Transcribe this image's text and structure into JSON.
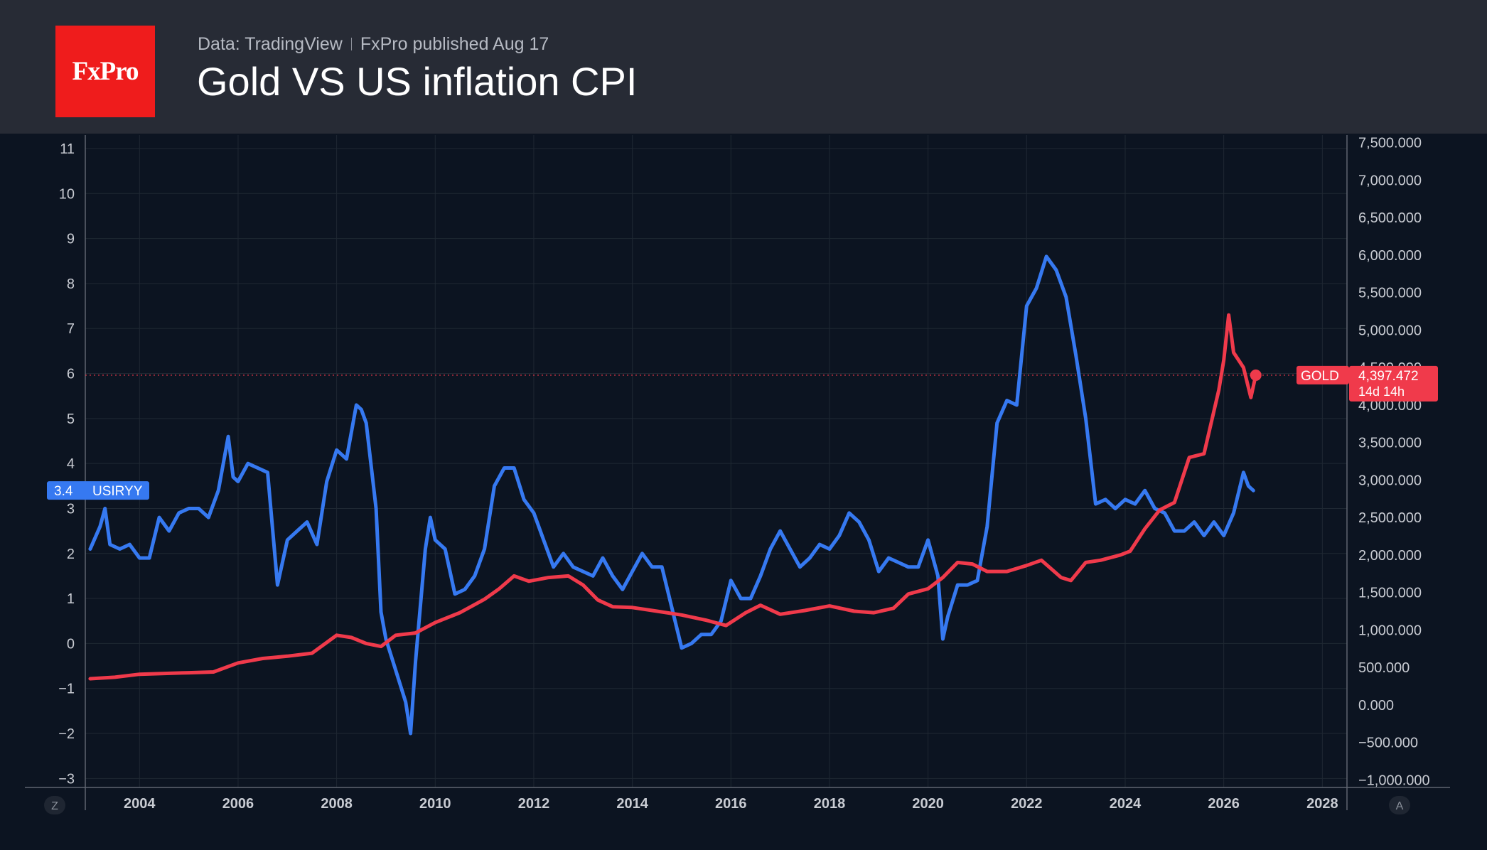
{
  "header": {
    "logo_text": "FxPro",
    "data_source": "Data: TradingView",
    "published": "FxPro published Aug 17",
    "title": "Gold  VS US inflation CPI"
  },
  "colors": {
    "background": "#0c1421",
    "header_background": "#272b35",
    "logo_red": "#ef1c1c",
    "cpi_blue": "#3679f1",
    "gold_red": "#f03a4b",
    "grid": "#1f2833",
    "axis_text": "#c9ccd3"
  },
  "chart_data": {
    "type": "line",
    "grid": true,
    "x_axis": {
      "ticks": [
        2004,
        2006,
        2008,
        2010,
        2012,
        2014,
        2016,
        2018,
        2020,
        2022,
        2024,
        2026,
        2028
      ],
      "range": [
        2002.9,
        2028.5
      ],
      "left_corner_label": "Z",
      "right_corner_label": "A"
    },
    "left_axis": {
      "ticks": [
        "11",
        "10",
        "9",
        "8",
        "7",
        "6",
        "5",
        "4",
        "3",
        "2",
        "1",
        "0",
        "−1",
        "−2",
        "−3"
      ],
      "range": [
        -3.2,
        11.3
      ]
    },
    "right_axis": {
      "ticks": [
        "7,500.000",
        "7,000.000",
        "6,500.000",
        "6,000.000",
        "5,500.000",
        "5,000.000",
        "4,500.000",
        "4,000.000",
        "3,500.000",
        "3,000.000",
        "2,500.000",
        "2,000.000",
        "1,500.000",
        "1,000.000",
        "500.000",
        "0.000",
        "−500.000",
        "−1,000.000"
      ],
      "range": [
        -1100,
        7600
      ]
    },
    "series": [
      {
        "name": "USIRYY",
        "axis": "left",
        "color": "#3679f1",
        "last_value_label": "3.4",
        "x": [
          2003.0,
          2003.2,
          2003.3,
          2003.4,
          2003.6,
          2003.8,
          2004.0,
          2004.2,
          2004.4,
          2004.6,
          2004.8,
          2005.0,
          2005.2,
          2005.4,
          2005.6,
          2005.8,
          2005.9,
          2006.0,
          2006.2,
          2006.4,
          2006.6,
          2006.8,
          2007.0,
          2007.2,
          2007.4,
          2007.6,
          2007.8,
          2008.0,
          2008.2,
          2008.4,
          2008.5,
          2008.6,
          2008.8,
          2008.9,
          2009.0,
          2009.2,
          2009.4,
          2009.5,
          2009.6,
          2009.8,
          2009.9,
          2010.0,
          2010.2,
          2010.4,
          2010.6,
          2010.8,
          2011.0,
          2011.2,
          2011.4,
          2011.6,
          2011.8,
          2012.0,
          2012.2,
          2012.4,
          2012.6,
          2012.8,
          2013.0,
          2013.2,
          2013.4,
          2013.6,
          2013.8,
          2014.0,
          2014.2,
          2014.4,
          2014.6,
          2014.8,
          2015.0,
          2015.2,
          2015.4,
          2015.6,
          2015.8,
          2016.0,
          2016.2,
          2016.4,
          2016.6,
          2016.8,
          2017.0,
          2017.2,
          2017.4,
          2017.6,
          2017.8,
          2018.0,
          2018.2,
          2018.4,
          2018.6,
          2018.8,
          2019.0,
          2019.2,
          2019.4,
          2019.6,
          2019.8,
          2020.0,
          2020.2,
          2020.3,
          2020.4,
          2020.6,
          2020.8,
          2021.0,
          2021.2,
          2021.4,
          2021.6,
          2021.8,
          2022.0,
          2022.2,
          2022.4,
          2022.6,
          2022.8,
          2023.0,
          2023.2,
          2023.4,
          2023.6,
          2023.8,
          2024.0,
          2024.2,
          2024.4,
          2024.6,
          2024.8,
          2025.0,
          2025.2,
          2025.4,
          2025.6,
          2025.8,
          2026.0,
          2026.2,
          2026.4,
          2026.5,
          2026.6
        ],
        "y": [
          2.1,
          2.6,
          3.0,
          2.2,
          2.1,
          2.2,
          1.9,
          1.9,
          2.8,
          2.5,
          2.9,
          3.0,
          3.0,
          2.8,
          3.4,
          4.6,
          3.7,
          3.6,
          4.0,
          3.9,
          3.8,
          1.3,
          2.3,
          2.5,
          2.7,
          2.2,
          3.6,
          4.3,
          4.1,
          5.3,
          5.2,
          4.9,
          3.0,
          0.7,
          0.1,
          -0.6,
          -1.3,
          -2.0,
          -0.4,
          2.1,
          2.8,
          2.3,
          2.1,
          1.1,
          1.2,
          1.5,
          2.1,
          3.5,
          3.9,
          3.9,
          3.2,
          2.9,
          2.3,
          1.7,
          2.0,
          1.7,
          1.6,
          1.5,
          1.9,
          1.5,
          1.2,
          1.6,
          2.0,
          1.7,
          1.7,
          0.8,
          -0.1,
          0.0,
          0.2,
          0.2,
          0.5,
          1.4,
          1.0,
          1.0,
          1.5,
          2.1,
          2.5,
          2.1,
          1.7,
          1.9,
          2.2,
          2.1,
          2.4,
          2.9,
          2.7,
          2.3,
          1.6,
          1.9,
          1.8,
          1.7,
          1.7,
          2.3,
          1.5,
          0.1,
          0.6,
          1.3,
          1.3,
          1.4,
          2.6,
          4.9,
          5.4,
          5.3,
          7.5,
          7.9,
          8.6,
          8.3,
          7.7,
          6.4,
          5.0,
          3.1,
          3.2,
          3.0,
          3.2,
          3.1,
          3.4,
          3.0,
          2.9,
          2.5,
          2.5,
          2.7,
          2.4,
          2.7,
          2.4,
          2.9,
          3.8,
          3.5,
          3.4
        ],
        "note": "sampled from chart; peak ~9.1 (2022.5), trough ~-2.0 (2009.5)"
      },
      {
        "name": "GOLD",
        "axis": "right",
        "color": "#f03a4b",
        "last_value_label": "4,397.472",
        "countdown_label": "14d 14h",
        "x": [
          2003.0,
          2003.5,
          2004.0,
          2004.5,
          2005.0,
          2005.5,
          2006.0,
          2006.5,
          2007.0,
          2007.5,
          2008.0,
          2008.3,
          2008.6,
          2008.9,
          2009.2,
          2009.6,
          2010.0,
          2010.5,
          2011.0,
          2011.3,
          2011.6,
          2011.9,
          2012.3,
          2012.7,
          2013.0,
          2013.3,
          2013.6,
          2014.0,
          2014.5,
          2015.0,
          2015.5,
          2015.9,
          2016.3,
          2016.6,
          2017.0,
          2017.5,
          2018.0,
          2018.5,
          2018.9,
          2019.3,
          2019.6,
          2020.0,
          2020.3,
          2020.6,
          2020.9,
          2021.2,
          2021.6,
          2022.0,
          2022.3,
          2022.7,
          2022.9,
          2023.2,
          2023.5,
          2023.9,
          2024.1,
          2024.4,
          2024.7,
          2025.0,
          2025.3,
          2025.6,
          2025.9,
          2026.0,
          2026.1,
          2026.2,
          2026.4,
          2026.55,
          2026.65
        ],
        "y": [
          350,
          370,
          410,
          420,
          430,
          440,
          560,
          620,
          650,
          690,
          930,
          900,
          820,
          780,
          930,
          960,
          1100,
          1230,
          1410,
          1550,
          1720,
          1650,
          1700,
          1720,
          1600,
          1400,
          1310,
          1300,
          1250,
          1200,
          1130,
          1060,
          1230,
          1330,
          1210,
          1260,
          1320,
          1250,
          1230,
          1290,
          1480,
          1550,
          1700,
          1900,
          1880,
          1780,
          1780,
          1860,
          1930,
          1700,
          1660,
          1900,
          1930,
          2000,
          2050,
          2350,
          2600,
          2700,
          3300,
          3350,
          4200,
          4600,
          5200,
          4700,
          4500,
          4100,
          4397.472
        ],
        "note": "sampled from chart; peak ~5,200 (early 2026)"
      }
    ],
    "price_line": {
      "series": "GOLD",
      "value": 4397.472
    }
  }
}
